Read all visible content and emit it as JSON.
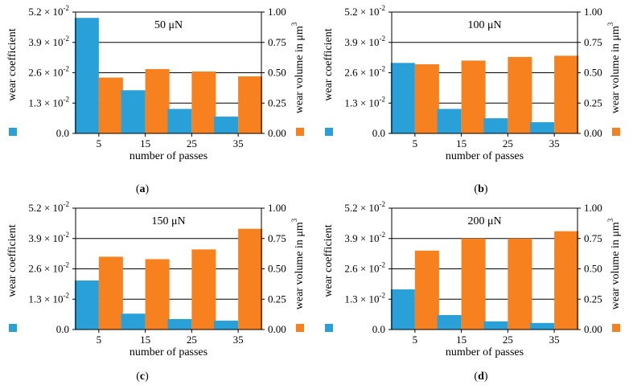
{
  "colors": {
    "wear_coefficient": "#2aa0d8",
    "wear_volume": "#f7811f",
    "axis": "#000000",
    "grid": "#000000"
  },
  "chart_data": [
    {
      "type": "bar",
      "panel": "a",
      "caption_letter": "a",
      "title": "50 μN",
      "xlabel": "number of passes",
      "ylabel_left": "wear coefficient",
      "ylabel_right": "wear volume in μm",
      "ylabel_right_sup": "3",
      "categories": [
        "5",
        "15",
        "25",
        "35"
      ],
      "ylim_left": [
        0,
        0.052
      ],
      "ylim_right": [
        0,
        1.0
      ],
      "yticks_left": [
        {
          "mant": "0.0",
          "exp": ""
        },
        {
          "mant": "1.3 × 10",
          "exp": "-2"
        },
        {
          "mant": "2.6 × 10",
          "exp": "-2"
        },
        {
          "mant": "3.9 × 10",
          "exp": "-2"
        },
        {
          "mant": "5.2 × 10",
          "exp": "-2"
        }
      ],
      "yticks_right": [
        "0.00",
        "0.25",
        "0.50",
        "0.75",
        "1.00"
      ],
      "grid": true,
      "series": [
        {
          "name": "wear coefficient",
          "axis": "left",
          "values": [
            0.0495,
            0.0185,
            0.0105,
            0.0072
          ]
        },
        {
          "name": "wear volume",
          "axis": "right",
          "values": [
            0.46,
            0.53,
            0.51,
            0.47
          ]
        }
      ]
    },
    {
      "type": "bar",
      "panel": "b",
      "caption_letter": "b",
      "title": "100 μN",
      "xlabel": "number of passes",
      "ylabel_left": "wear coefficient",
      "ylabel_right": "wear volume in μm",
      "ylabel_right_sup": "3",
      "categories": [
        "5",
        "15",
        "25",
        "35"
      ],
      "ylim_left": [
        0,
        0.052
      ],
      "ylim_right": [
        0,
        1.0
      ],
      "yticks_left": [
        {
          "mant": "0.0",
          "exp": ""
        },
        {
          "mant": "1.3 × 10",
          "exp": "-2"
        },
        {
          "mant": "2.6 × 10",
          "exp": "-2"
        },
        {
          "mant": "3.9 × 10",
          "exp": "-2"
        },
        {
          "mant": "5.2 × 10",
          "exp": "-2"
        }
      ],
      "yticks_right": [
        "0.00",
        "0.25",
        "0.50",
        "0.75",
        "1.00"
      ],
      "grid": true,
      "series": [
        {
          "name": "wear coefficient",
          "axis": "left",
          "values": [
            0.0302,
            0.0105,
            0.0065,
            0.0048
          ]
        },
        {
          "name": "wear volume",
          "axis": "right",
          "values": [
            0.57,
            0.6,
            0.63,
            0.64
          ]
        }
      ]
    },
    {
      "type": "bar",
      "panel": "c",
      "caption_letter": "c",
      "title": "150 μN",
      "xlabel": "number of passes",
      "ylabel_left": "wear coefficient",
      "ylabel_right": "wear volume in μm",
      "ylabel_right_sup": "3",
      "categories": [
        "5",
        "15",
        "25",
        "35"
      ],
      "ylim_left": [
        0,
        0.052
      ],
      "ylim_right": [
        0,
        1.0
      ],
      "yticks_left": [
        {
          "mant": "0.0",
          "exp": ""
        },
        {
          "mant": "1.3 × 10",
          "exp": "-2"
        },
        {
          "mant": "2.6 × 10",
          "exp": "-2"
        },
        {
          "mant": "3.9 × 10",
          "exp": "-2"
        },
        {
          "mant": "5.2 × 10",
          "exp": "-2"
        }
      ],
      "yticks_right": [
        "0.00",
        "0.25",
        "0.50",
        "0.75",
        "1.00"
      ],
      "grid": true,
      "series": [
        {
          "name": "wear coefficient",
          "axis": "left",
          "values": [
            0.021,
            0.0068,
            0.0045,
            0.0038
          ]
        },
        {
          "name": "wear volume",
          "axis": "right",
          "values": [
            0.6,
            0.58,
            0.66,
            0.83
          ]
        }
      ]
    },
    {
      "type": "bar",
      "panel": "d",
      "caption_letter": "d",
      "title": "200 μN",
      "xlabel": "number of passes",
      "ylabel_left": "wear coefficient",
      "ylabel_right": "wear volume in μm",
      "ylabel_right_sup": "3",
      "categories": [
        "5",
        "15",
        "25",
        "35"
      ],
      "ylim_left": [
        0,
        0.052
      ],
      "ylim_right": [
        0,
        1.0
      ],
      "yticks_left": [
        {
          "mant": "0.0",
          "exp": ""
        },
        {
          "mant": "1.3 × 10",
          "exp": "-2"
        },
        {
          "mant": "2.6 × 10",
          "exp": "-2"
        },
        {
          "mant": "3.9 × 10",
          "exp": "-2"
        },
        {
          "mant": "5.2 × 10",
          "exp": "-2"
        }
      ],
      "yticks_right": [
        "0.00",
        "0.25",
        "0.50",
        "0.75",
        "1.00"
      ],
      "grid": true,
      "series": [
        {
          "name": "wear coefficient",
          "axis": "left",
          "values": [
            0.0172,
            0.0062,
            0.0035,
            0.0028
          ]
        },
        {
          "name": "wear volume",
          "axis": "right",
          "values": [
            0.65,
            0.75,
            0.75,
            0.81
          ]
        }
      ]
    }
  ]
}
